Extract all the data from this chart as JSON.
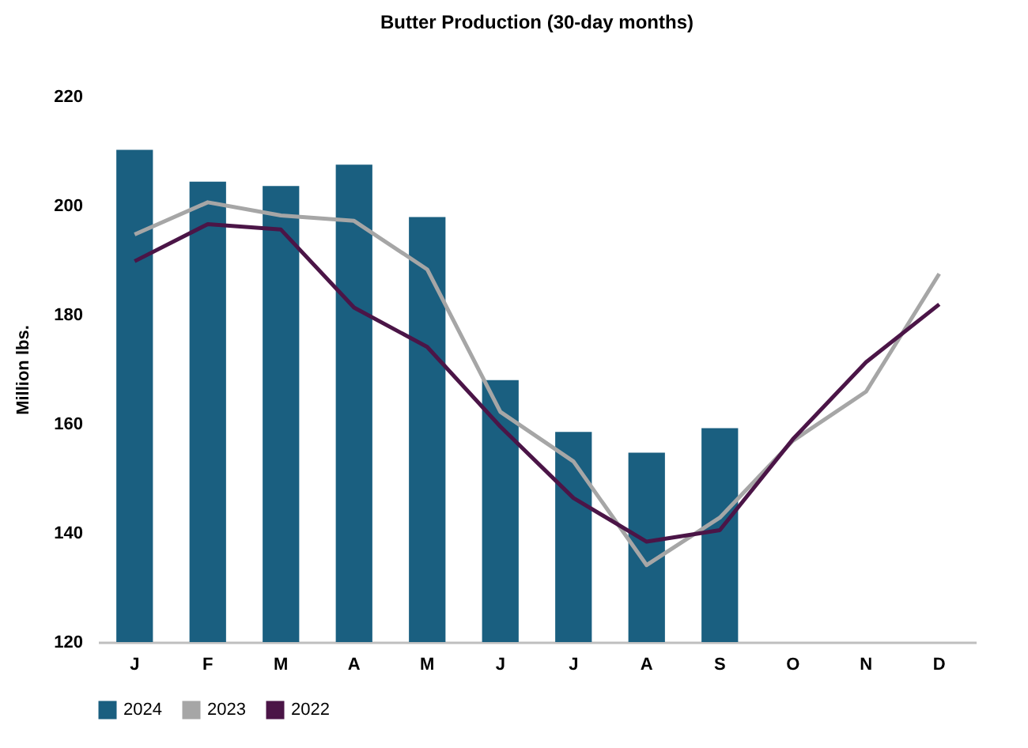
{
  "chart_data": {
    "type": "bar",
    "title": "Butter Production (30-day months)",
    "ylabel": "Million lbs.",
    "categories": [
      "J",
      "F",
      "M",
      "A",
      "M",
      "J",
      "J",
      "A",
      "S",
      "O",
      "N",
      "D"
    ],
    "series": [
      {
        "name": "2024",
        "color": "#1a5f80",
        "values": [
          210.2,
          204.4,
          203.6,
          207.5,
          197.9,
          168.0,
          158.5,
          154.7,
          159.2,
          null,
          null,
          null
        ]
      },
      {
        "name": "2023",
        "type": "line",
        "color": "#a6a6a6",
        "values": [
          194.7,
          200.6,
          198.2,
          197.2,
          188.3,
          162.2,
          153.1,
          134.1,
          142.8,
          156.9,
          165.9,
          187.5
        ]
      },
      {
        "name": "2022",
        "type": "line",
        "color": "#4b1547",
        "values": [
          189.8,
          196.6,
          195.6,
          181.3,
          174.1,
          159.5,
          146.4,
          138.4,
          140.5,
          157.2,
          171.3,
          181.9
        ]
      }
    ],
    "ylim": [
      120,
      220
    ],
    "yticks": [
      120,
      140,
      160,
      180,
      200,
      220
    ],
    "grid": false,
    "legend": "bottom"
  }
}
